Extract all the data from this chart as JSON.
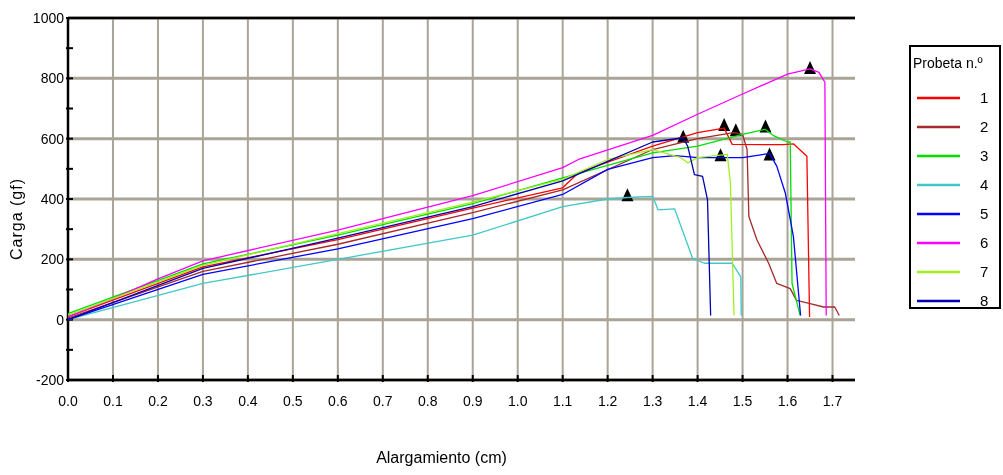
{
  "chart_data": {
    "type": "line",
    "xlabel": "Alargamiento (cm)",
    "ylabel": "Carga (gf)",
    "legend_title": "Probeta n.º",
    "legend": "right",
    "grid": true,
    "marker": "none",
    "line_style": "solid",
    "xlim": [
      0,
      1.75
    ],
    "xticks": [
      {
        "value": 0,
        "label": "0.0"
      },
      {
        "value": 0.1,
        "label": "0.1"
      },
      {
        "value": 0.2,
        "label": "0.2"
      },
      {
        "value": 0.3,
        "label": "0.3"
      },
      {
        "value": 0.4,
        "label": "0.4"
      },
      {
        "value": 0.5,
        "label": "0.5"
      },
      {
        "value": 0.6,
        "label": "0.6"
      },
      {
        "value": 0.7,
        "label": "0.7"
      },
      {
        "value": 0.8,
        "label": "0.8"
      },
      {
        "value": 0.9,
        "label": "0.9"
      },
      {
        "value": 1,
        "label": "1.0"
      },
      {
        "value": 1.1,
        "label": "1.1"
      },
      {
        "value": 1.2,
        "label": "1.2"
      },
      {
        "value": 1.3,
        "label": "1.3"
      },
      {
        "value": 1.4,
        "label": "1.4"
      },
      {
        "value": 1.5,
        "label": "1.5"
      },
      {
        "value": 1.6,
        "label": "1.6"
      },
      {
        "value": 1.7,
        "label": "1.7"
      }
    ],
    "ylim": [
      -200,
      1000
    ],
    "yticks": [
      -200,
      {
        "value": -100,
        "label": null
      },
      0,
      {
        "value": 100,
        "label": null
      },
      200,
      {
        "value": 300,
        "label": null
      },
      400,
      {
        "value": 500,
        "label": null
      },
      600,
      {
        "value": 700,
        "label": null
      },
      800,
      {
        "value": 900,
        "label": null
      },
      1000
    ],
    "series": [
      {
        "name": "1",
        "color": "#ff0000",
        "x": [
          0,
          0.3,
          0.6,
          0.9,
          1.1,
          1.135,
          1.3,
          1.4,
          1.459,
          1.477,
          1.59,
          1.613,
          1.643,
          1.649
        ],
        "values": [
          10,
          175,
          265,
          370,
          437,
          487,
          575,
          620,
          635,
          581,
          580,
          583,
          542,
          9
        ]
      },
      {
        "name": "2",
        "color": "#a52a2a",
        "x": [
          0,
          0.3,
          0.6,
          0.9,
          1.1,
          1.3,
          1.4,
          1.48,
          1.5,
          1.51,
          1.514,
          1.532,
          1.558,
          1.576,
          1.606,
          1.62,
          1.65,
          1.68,
          1.705,
          1.715
        ],
        "values": [
          5,
          160,
          250,
          355,
          430,
          564,
          600,
          620,
          614,
          564,
          342,
          264,
          187,
          120,
          103,
          64,
          53,
          42,
          42,
          14
        ]
      },
      {
        "name": "3",
        "color": "#00e000",
        "x": [
          0,
          0.3,
          0.6,
          0.9,
          1.1,
          1.3,
          1.4,
          1.5,
          1.55,
          1.57,
          1.6,
          1.606,
          1.61,
          1.628
        ],
        "values": [
          20,
          185,
          280,
          385,
          470,
          553,
          575,
          614,
          631,
          609,
          589,
          589,
          120,
          14
        ]
      },
      {
        "name": "4",
        "color": "#40c8c8",
        "x": [
          0,
          0.3,
          0.6,
          0.9,
          1.1,
          1.2,
          1.244,
          1.3,
          1.312,
          1.349,
          1.389,
          1.415,
          1.477,
          1.496,
          1.497
        ],
        "values": [
          0,
          120,
          200,
          280,
          375,
          400,
          405,
          409,
          364,
          367,
          203,
          187,
          187,
          142,
          14
        ]
      },
      {
        "name": "5",
        "color": "#0000ff",
        "x": [
          0,
          0.3,
          0.6,
          0.9,
          1.1,
          1.2,
          1.3,
          1.35,
          1.4,
          1.5,
          1.56,
          1.576,
          1.595,
          1.613,
          1.629
        ],
        "values": [
          0,
          150,
          235,
          335,
          415,
          498,
          537,
          544,
          537,
          537,
          551,
          509,
          420,
          276,
          14
        ]
      },
      {
        "name": "6",
        "color": "#ff00ff",
        "x": [
          0,
          0.1,
          0.2,
          0.3,
          0.6,
          0.9,
          1.1,
          1.135,
          1.3,
          1.4,
          1.5,
          1.6,
          1.65,
          1.67,
          1.683,
          1.686
        ],
        "values": [
          10,
          70,
          135,
          195,
          297,
          411,
          504,
          531,
          611,
          681,
          748,
          814,
          831,
          820,
          787,
          14
        ]
      },
      {
        "name": "7",
        "color": "#a0f020",
        "x": [
          0,
          0.3,
          0.6,
          0.9,
          1.1,
          1.2,
          1.3,
          1.363,
          1.378,
          1.4,
          1.466,
          1.473,
          1.481
        ],
        "values": [
          15,
          180,
          285,
          390,
          465,
          531,
          564,
          537,
          520,
          537,
          548,
          453,
          14
        ]
      },
      {
        "name": "8",
        "color": "#0000b0",
        "x": [
          0,
          0.3,
          0.6,
          0.9,
          1.1,
          1.2,
          1.3,
          1.368,
          1.378,
          1.393,
          1.411,
          1.422,
          1.429
        ],
        "values": [
          0,
          170,
          270,
          375,
          460,
          525,
          589,
          603,
          575,
          481,
          475,
          398,
          14
        ]
      },
      {
        "type": "scatter",
        "marker": "triangle",
        "color": "#000000",
        "x": [
          1.459,
          1.485,
          1.551,
          1.244,
          1.56,
          1.65,
          1.451,
          1.368
        ],
        "values": [
          642,
          625,
          637,
          409,
          544,
          831,
          542,
          603
        ]
      }
    ]
  }
}
